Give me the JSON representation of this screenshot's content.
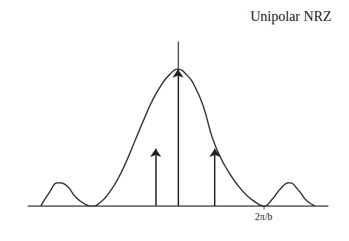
{
  "chart_data": {
    "type": "line",
    "title": "Unipolar NRZ",
    "x": [
      -1.6,
      -1.5,
      -1.4,
      -1.3,
      -1.2,
      -1.1,
      -1.0,
      -0.9,
      -0.8,
      -0.7,
      -0.6,
      -0.5,
      -0.4,
      -0.3,
      -0.2,
      -0.1,
      0,
      0.1,
      0.2,
      0.3,
      0.4,
      0.5,
      0.6,
      0.7,
      0.8,
      0.9,
      1.0,
      1.1,
      1.2,
      1.3,
      1.4,
      1.5,
      1.6
    ],
    "values": [
      0,
      0.1,
      0.17,
      0.15,
      0.07,
      0.02,
      0,
      0.03,
      0.1,
      0.2,
      0.33,
      0.48,
      0.63,
      0.77,
      0.88,
      0.96,
      1,
      0.96,
      0.87,
      0.72,
      0.5,
      0.35,
      0.24,
      0.15,
      0.08,
      0.03,
      0,
      0.05,
      0.13,
      0.17,
      0.12,
      0.04,
      0
    ],
    "impulses": {
      "x": [
        -0.26,
        0,
        0.43
      ],
      "values": [
        0.42,
        1,
        0.42
      ]
    },
    "color": "#222222",
    "xlim": [
      -1.75,
      1.75
    ],
    "ylim": [
      0,
      1.2
    ],
    "xticks": [
      {
        "value": 1,
        "label": "2π/b"
      }
    ],
    "tick_labels": "x",
    "grid": false
  }
}
